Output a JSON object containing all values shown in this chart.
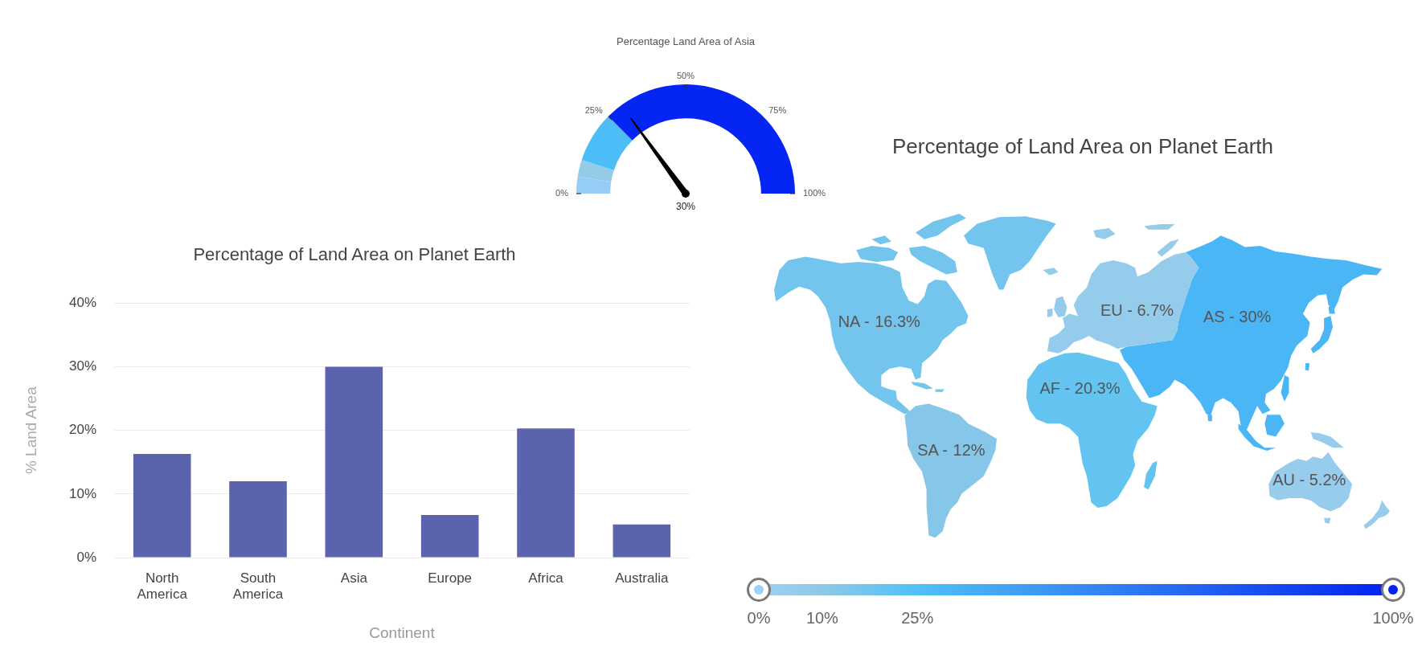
{
  "chart_data": [
    {
      "type": "donut",
      "title": "Percentage Land Area of Asia",
      "categories": [
        null,
        null,
        null,
        null
      ],
      "values": [
        5,
        5,
        15,
        75
      ],
      "colors": [
        "#96cdf7",
        "#94cbe6",
        "#4dbdf7",
        "#0425f4"
      ],
      "needle": null,
      "annotations": [
        "0%",
        "25%",
        "50%",
        "75%",
        "100%",
        {
          "text": "30%"
        }
      ]
    },
    {
      "type": "bar",
      "title": "Percentage of Land Area on Planet Earth",
      "xlabel": "Continent",
      "ylabel": "% Land Area",
      "categories": [
        "North America",
        "South America",
        "Asia",
        "Europe",
        "Africa",
        "Australia"
      ],
      "values": [
        16.3,
        12,
        30,
        6.7,
        20.3,
        5.2
      ],
      "color": "#5b63ae",
      "ylim": [
        0,
        40
      ],
      "yticks": [
        {
          "value": 0,
          "label": "0%"
        },
        {
          "value": 10,
          "label": "10%"
        },
        {
          "value": 20,
          "label": "20%"
        },
        {
          "value": 30,
          "label": "30%"
        },
        {
          "value": 40,
          "label": "40%"
        }
      ],
      "grid": "y"
    },
    {
      "type": "other",
      "title": "Percentage of Land Area on Planet Earth",
      "categories": [
        "NA -",
        "SA -",
        "AS -",
        "EU -",
        "AF -",
        "AU -"
      ],
      "values": [
        16.3,
        12,
        30,
        6.7,
        20.3,
        5.2
      ],
      "value_labels": [
        "16.3%",
        "12%",
        "30%",
        "6.7%",
        "20.3%",
        "5.2%"
      ],
      "annotations": [
        "0%",
        "10%",
        "25%",
        "100%"
      ]
    }
  ]
}
